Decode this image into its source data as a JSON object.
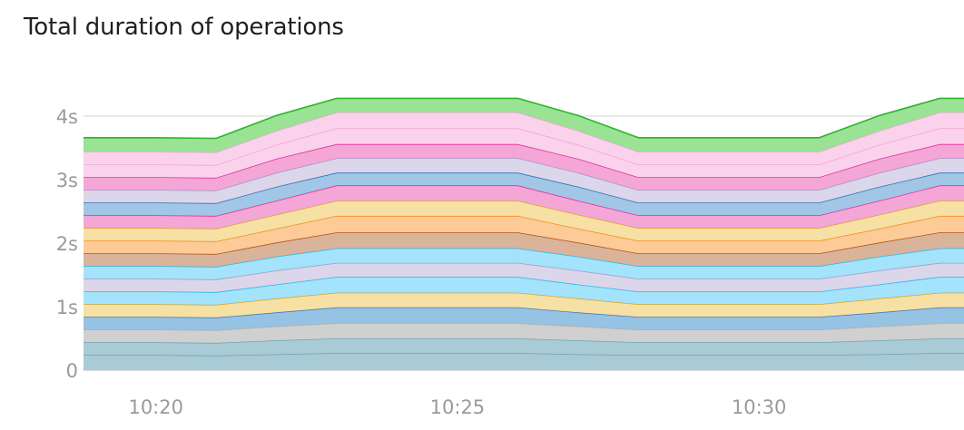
{
  "chart_data": {
    "type": "area",
    "stacked": true,
    "title": "Total duration of operations",
    "xlabel": "",
    "ylabel": "",
    "y_ticks": [
      "0",
      "1s",
      "2s",
      "3s",
      "4s"
    ],
    "y_tick_values": [
      0,
      1,
      2,
      3,
      4
    ],
    "ylim": [
      0,
      4.3
    ],
    "x_ticks": [
      "10:20",
      "10:25",
      "10:30"
    ],
    "x_tick_values": [
      "10:20",
      "10:25",
      "10:30"
    ],
    "xlim": [
      "10:18.8",
      "10:33.4"
    ],
    "grid": true,
    "legend": "none",
    "x": [
      "10:18.8",
      "10:20",
      "10:21",
      "10:22",
      "10:23",
      "10:24",
      "10:25",
      "10:26",
      "10:27",
      "10:28",
      "10:29",
      "10:30",
      "10:31",
      "10:32",
      "10:33",
      "10:33.4"
    ],
    "series": [
      {
        "color": "#a9cbd6",
        "line": "#6fa3b4",
        "values": [
          0.24,
          0.24,
          0.23,
          0.25,
          0.27,
          0.27,
          0.27,
          0.27,
          0.25,
          0.24,
          0.24,
          0.24,
          0.24,
          0.25,
          0.27,
          0.27
        ]
      },
      {
        "color": "#a9cbd6",
        "line": "#6fa3b4",
        "values": [
          0.2,
          0.2,
          0.2,
          0.22,
          0.23,
          0.23,
          0.23,
          0.23,
          0.22,
          0.2,
          0.2,
          0.2,
          0.2,
          0.22,
          0.23,
          0.23
        ]
      },
      {
        "color": "#d0d0d0",
        "line": "#b0b0b0",
        "values": [
          0.2,
          0.2,
          0.2,
          0.22,
          0.24,
          0.24,
          0.24,
          0.24,
          0.22,
          0.2,
          0.2,
          0.2,
          0.2,
          0.22,
          0.24,
          0.24
        ]
      },
      {
        "color": "#96c2e4",
        "line": "#3d7eb8",
        "values": [
          0.2,
          0.2,
          0.2,
          0.22,
          0.25,
          0.25,
          0.25,
          0.25,
          0.22,
          0.2,
          0.2,
          0.2,
          0.2,
          0.22,
          0.25,
          0.25
        ]
      },
      {
        "color": "#f7e0a4",
        "line": "#d4a72c",
        "values": [
          0.2,
          0.2,
          0.2,
          0.22,
          0.23,
          0.23,
          0.23,
          0.23,
          0.22,
          0.2,
          0.2,
          0.2,
          0.2,
          0.22,
          0.23,
          0.23
        ]
      },
      {
        "color": "#a3e3fb",
        "line": "#29b6e8",
        "values": [
          0.2,
          0.2,
          0.2,
          0.22,
          0.25,
          0.25,
          0.25,
          0.25,
          0.22,
          0.2,
          0.2,
          0.2,
          0.2,
          0.22,
          0.25,
          0.25
        ]
      },
      {
        "color": "#dcd6ea",
        "line": "#a09ac6",
        "values": [
          0.2,
          0.2,
          0.2,
          0.22,
          0.22,
          0.22,
          0.22,
          0.22,
          0.22,
          0.2,
          0.2,
          0.2,
          0.2,
          0.22,
          0.22,
          0.22
        ]
      },
      {
        "color": "#a3e3fb",
        "line": "#29b6e8",
        "values": [
          0.2,
          0.2,
          0.2,
          0.22,
          0.23,
          0.23,
          0.23,
          0.23,
          0.22,
          0.2,
          0.2,
          0.2,
          0.2,
          0.22,
          0.23,
          0.23
        ]
      },
      {
        "color": "#d9b49a",
        "line": "#b3541e",
        "values": [
          0.2,
          0.2,
          0.2,
          0.22,
          0.25,
          0.25,
          0.25,
          0.25,
          0.22,
          0.2,
          0.2,
          0.2,
          0.2,
          0.22,
          0.25,
          0.25
        ]
      },
      {
        "color": "#fccb97",
        "line": "#f58b1f",
        "values": [
          0.2,
          0.2,
          0.2,
          0.22,
          0.26,
          0.26,
          0.26,
          0.26,
          0.22,
          0.2,
          0.2,
          0.2,
          0.2,
          0.22,
          0.26,
          0.26
        ]
      },
      {
        "color": "#f7e0a4",
        "line": "#d4a72c",
        "values": [
          0.2,
          0.2,
          0.2,
          0.22,
          0.24,
          0.24,
          0.24,
          0.24,
          0.22,
          0.2,
          0.2,
          0.2,
          0.2,
          0.22,
          0.24,
          0.24
        ]
      },
      {
        "color": "#f4a6d7",
        "line": "#e0329b",
        "values": [
          0.2,
          0.2,
          0.2,
          0.22,
          0.24,
          0.24,
          0.24,
          0.24,
          0.22,
          0.2,
          0.2,
          0.2,
          0.2,
          0.22,
          0.24,
          0.24
        ]
      },
      {
        "color": "#a2c6e6",
        "line": "#2f72b8",
        "values": [
          0.2,
          0.2,
          0.2,
          0.22,
          0.2,
          0.2,
          0.2,
          0.2,
          0.22,
          0.2,
          0.2,
          0.2,
          0.2,
          0.22,
          0.2,
          0.2
        ]
      },
      {
        "color": "#dcd6ea",
        "line": "#a09ac6",
        "values": [
          0.2,
          0.2,
          0.2,
          0.22,
          0.23,
          0.23,
          0.23,
          0.23,
          0.22,
          0.2,
          0.2,
          0.2,
          0.2,
          0.22,
          0.23,
          0.23
        ]
      },
      {
        "color": "#f4a6d7",
        "line": "#e0329b",
        "values": [
          0.2,
          0.2,
          0.2,
          0.22,
          0.22,
          0.22,
          0.22,
          0.22,
          0.22,
          0.2,
          0.2,
          0.2,
          0.2,
          0.22,
          0.22,
          0.22
        ]
      },
      {
        "color": "#fbd2ec",
        "line": "#f2a5d6",
        "values": [
          0.2,
          0.2,
          0.2,
          0.22,
          0.25,
          0.25,
          0.25,
          0.25,
          0.22,
          0.2,
          0.2,
          0.2,
          0.2,
          0.22,
          0.25,
          0.25
        ]
      },
      {
        "color": "#fbd2ec",
        "line": "#f2a5d6",
        "values": [
          0.2,
          0.2,
          0.2,
          0.22,
          0.25,
          0.25,
          0.25,
          0.25,
          0.22,
          0.2,
          0.2,
          0.2,
          0.2,
          0.22,
          0.25,
          0.25
        ]
      },
      {
        "color": "#9ae294",
        "line": "#2bb52b",
        "values": [
          0.22,
          0.22,
          0.22,
          0.24,
          0.22,
          0.22,
          0.22,
          0.22,
          0.24,
          0.22,
          0.22,
          0.22,
          0.22,
          0.24,
          0.22,
          0.22
        ]
      }
    ]
  }
}
